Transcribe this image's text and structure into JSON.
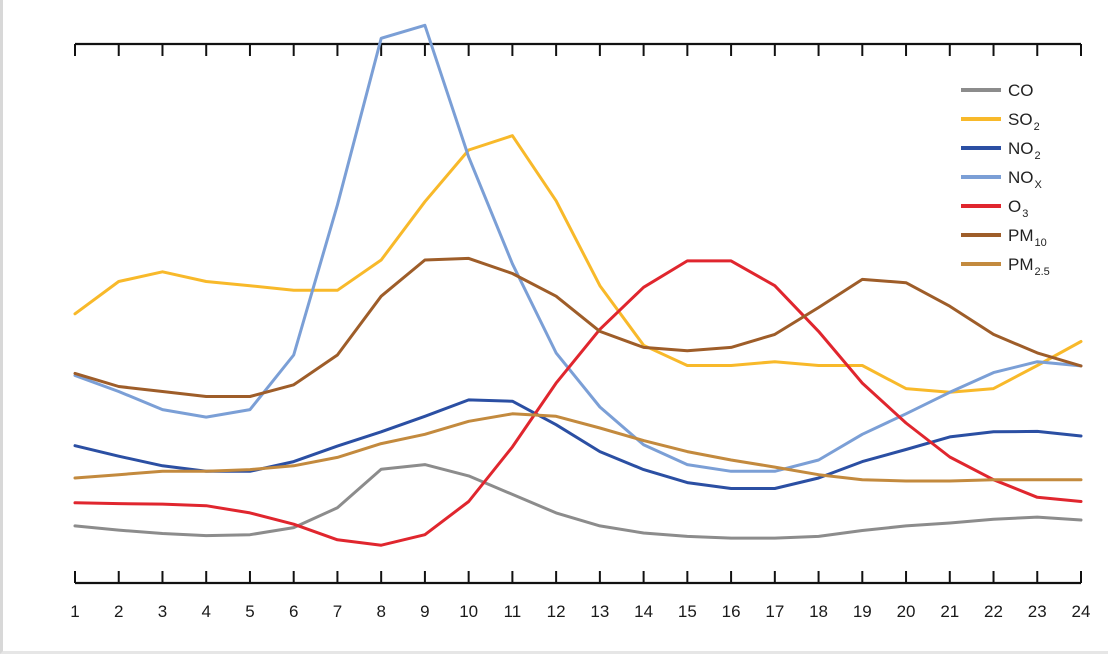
{
  "chart_data": {
    "type": "line",
    "x": [
      1,
      2,
      3,
      4,
      5,
      6,
      7,
      8,
      9,
      10,
      11,
      12,
      13,
      14,
      15,
      16,
      17,
      18,
      19,
      20,
      21,
      22,
      23,
      24
    ],
    "xlim": [
      1,
      24
    ],
    "ylim": [
      0,
      100
    ],
    "y_axis_labels_shown": false,
    "grid": false,
    "legend_position": "top-right",
    "series": [
      {
        "name": "CO",
        "base": "CO",
        "sub": "",
        "color": "#8c8c8c",
        "values": [
          10.5,
          9.5,
          8.7,
          8.2,
          8.4,
          10.1,
          14.8,
          24,
          25.1,
          22.4,
          18,
          13.6,
          10.5,
          8.8,
          8,
          7.6,
          7.6,
          8,
          9.4,
          10.5,
          11.2,
          12.1,
          12.6,
          11.9
        ]
      },
      {
        "name": "SO2",
        "base": "SO",
        "sub": "2",
        "color": "#f8b92a",
        "values": [
          61,
          68.7,
          71,
          68.7,
          67.7,
          66.6,
          66.6,
          73.8,
          87.7,
          100,
          103.4,
          87.9,
          67.7,
          53.5,
          48.7,
          48.7,
          49.6,
          48.7,
          48.7,
          43.2,
          42.3,
          43.2,
          48.7,
          54.4
        ]
      },
      {
        "name": "NO2",
        "base": "NO",
        "sub": "2",
        "color": "#2b4fa3",
        "values": [
          29.6,
          27.1,
          24.8,
          23.5,
          23.5,
          25.8,
          29.5,
          32.9,
          36.6,
          40.5,
          40.2,
          34.6,
          28.2,
          23.9,
          20.8,
          19.4,
          19.4,
          21.9,
          25.8,
          28.7,
          31.7,
          32.9,
          33,
          31.9
        ]
      },
      {
        "name": "NOX",
        "base": "NO",
        "sub": "X",
        "color": "#7b9fd6",
        "values": [
          46.3,
          42.5,
          38.2,
          36.4,
          38.2,
          51.2,
          86.9,
          126.6,
          129.7,
          98.3,
          72.9,
          51.7,
          38.8,
          29.8,
          25.1,
          23.5,
          23.5,
          26.2,
          32.3,
          37.2,
          42.3,
          47,
          49.6,
          48.6
        ]
      },
      {
        "name": "O3",
        "base": "O",
        "sub": "3",
        "color": "#e0262e",
        "values": [
          16,
          15.8,
          15.7,
          15.3,
          13.6,
          10.9,
          7.2,
          5.9,
          8.4,
          16.3,
          29.3,
          44.5,
          57.3,
          67.3,
          73.6,
          73.6,
          67.7,
          56.8,
          44.5,
          35,
          26.9,
          21.5,
          17.3,
          16.3
        ]
      },
      {
        "name": "PM10",
        "base": "PM",
        "sub": "10",
        "color": "#9e5d29",
        "values": [
          46.8,
          43.7,
          42.5,
          41.3,
          41.3,
          44.1,
          51.2,
          65.2,
          73.8,
          74.2,
          70.6,
          65.2,
          56.8,
          53,
          52.2,
          53,
          56.1,
          62.5,
          69.2,
          68.4,
          62.8,
          56.1,
          51.7,
          48.6
        ]
      },
      {
        "name": "PM2.5",
        "base": "PM",
        "sub": "2.5",
        "color": "#c38a3e",
        "values": [
          21.9,
          22.7,
          23.5,
          23.5,
          23.9,
          24.8,
          26.8,
          30.1,
          32.3,
          35.4,
          37.2,
          36.6,
          33.8,
          30.8,
          28.2,
          26.2,
          24.5,
          22.7,
          21.5,
          21.2,
          21.2,
          21.5,
          21.5,
          21.5
        ]
      }
    ]
  }
}
